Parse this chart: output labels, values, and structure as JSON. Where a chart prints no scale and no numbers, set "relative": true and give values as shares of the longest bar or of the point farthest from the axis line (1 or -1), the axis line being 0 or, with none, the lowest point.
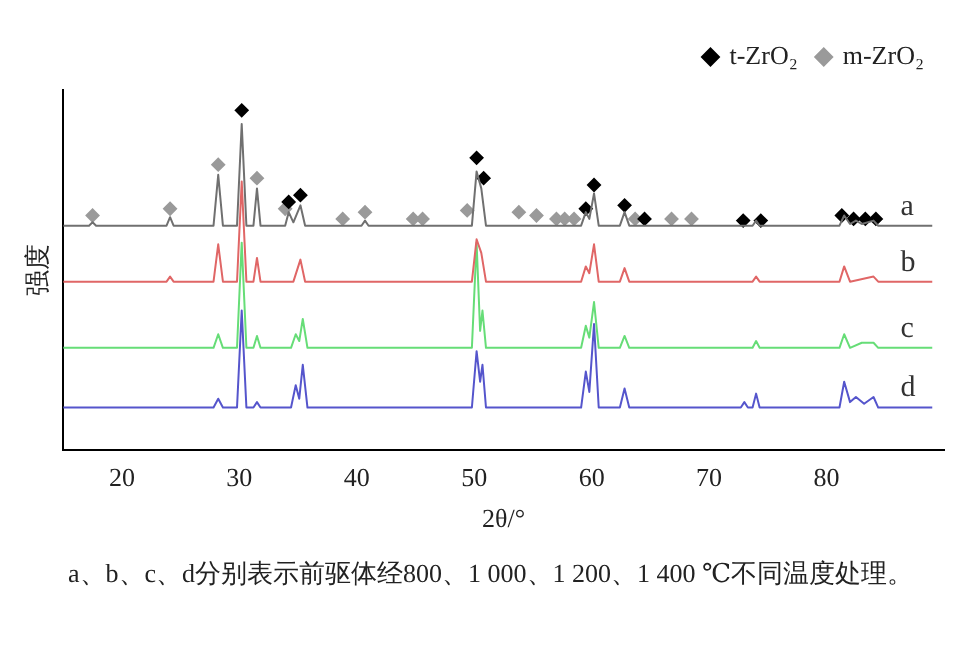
{
  "chart_data": {
    "type": "line",
    "relative": true,
    "xlabel": "2θ/°",
    "ylabel": "强度",
    "xlim": [
      15,
      90
    ],
    "xticks": [
      20,
      30,
      40,
      50,
      60,
      70,
      80
    ],
    "grid": false,
    "legend": "top right",
    "tick_labels": "x",
    "annotations": [
      "a、b、c、d分别表示前驱体经800、1 000、1 200、1 400 ℃不同温度处理。"
    ],
    "series": [
      {
        "name": "a",
        "marker": "none",
        "color": "#707070",
        "x": [
          15,
          17.2,
          17.5,
          17.8,
          23.8,
          24.1,
          24.4,
          27.8,
          28.2,
          28.6,
          29.8,
          30.2,
          30.6,
          31.2,
          31.5,
          31.8,
          33.9,
          34.2,
          34.6,
          35.2,
          35.6,
          40.4,
          40.7,
          41,
          49.8,
          50.2,
          50.6,
          51.0,
          59.1,
          59.5,
          59.8,
          60.2,
          60.6,
          62.4,
          62.8,
          63.2,
          73.7,
          74,
          74.3,
          81.1,
          81.5,
          82.0,
          82.5,
          83.0,
          84,
          84.4,
          89
        ],
        "values": [
          0.66,
          0.66,
          0.67,
          0.66,
          0.66,
          0.685,
          0.66,
          0.66,
          0.81,
          0.66,
          0.66,
          0.96,
          0.66,
          0.66,
          0.77,
          0.66,
          0.66,
          0.7,
          0.67,
          0.72,
          0.66,
          0.66,
          0.675,
          0.66,
          0.66,
          0.82,
          0.77,
          0.66,
          0.66,
          0.7,
          0.68,
          0.755,
          0.66,
          0.66,
          0.7,
          0.66,
          0.66,
          0.675,
          0.66,
          0.66,
          0.69,
          0.665,
          0.675,
          0.665,
          0.675,
          0.66,
          0.66
        ]
      },
      {
        "name": "b",
        "marker": "none",
        "color": "#e06666",
        "x": [
          15,
          23.8,
          24.1,
          24.4,
          27.8,
          28.2,
          28.6,
          29.8,
          30.2,
          30.6,
          31.2,
          31.5,
          31.8,
          34.6,
          35.2,
          35.6,
          49.8,
          50.2,
          50.6,
          51.0,
          59.1,
          59.5,
          59.8,
          60.2,
          60.6,
          62.4,
          62.8,
          63.2,
          73.7,
          74,
          74.3,
          81.1,
          81.5,
          82.0,
          84,
          84.4,
          89
        ],
        "values": [
          0.495,
          0.495,
          0.51,
          0.495,
          0.495,
          0.605,
          0.495,
          0.495,
          0.79,
          0.495,
          0.495,
          0.565,
          0.495,
          0.495,
          0.56,
          0.495,
          0.495,
          0.62,
          0.58,
          0.495,
          0.495,
          0.54,
          0.52,
          0.605,
          0.495,
          0.495,
          0.535,
          0.495,
          0.495,
          0.51,
          0.495,
          0.495,
          0.54,
          0.495,
          0.51,
          0.495,
          0.495
        ]
      },
      {
        "name": "c",
        "marker": "none",
        "color": "#66dd77",
        "x": [
          15,
          27.8,
          28.2,
          28.6,
          29.8,
          30.2,
          30.6,
          31.2,
          31.5,
          31.8,
          34.4,
          34.8,
          35.1,
          35.4,
          35.8,
          49.8,
          50.2,
          50.5,
          50.7,
          51.0,
          59.1,
          59.5,
          59.8,
          60.2,
          60.6,
          62.4,
          62.8,
          63.2,
          73.7,
          74,
          74.3,
          81.1,
          81.5,
          82.0,
          83,
          84,
          84.4,
          89
        ],
        "values": [
          0.3,
          0.3,
          0.34,
          0.3,
          0.3,
          0.61,
          0.3,
          0.3,
          0.335,
          0.3,
          0.3,
          0.34,
          0.32,
          0.385,
          0.3,
          0.3,
          0.61,
          0.35,
          0.41,
          0.3,
          0.3,
          0.365,
          0.33,
          0.435,
          0.3,
          0.3,
          0.335,
          0.3,
          0.3,
          0.32,
          0.3,
          0.3,
          0.34,
          0.3,
          0.315,
          0.315,
          0.3,
          0.3
        ]
      },
      {
        "name": "d",
        "marker": "none",
        "color": "#5555cc",
        "x": [
          15,
          27.8,
          28.2,
          28.6,
          29.8,
          30.2,
          30.6,
          31.2,
          31.5,
          31.8,
          34.4,
          34.8,
          35.1,
          35.4,
          35.8,
          49.8,
          50.2,
          50.5,
          50.7,
          51.0,
          59.1,
          59.5,
          59.8,
          60.2,
          60.6,
          62.4,
          62.8,
          63.2,
          72.7,
          73,
          73.3,
          73.7,
          74,
          74.3,
          81.1,
          81.5,
          82.0,
          82.5,
          83.2,
          84,
          84.4,
          89
        ],
        "values": [
          0.124,
          0.124,
          0.15,
          0.124,
          0.124,
          0.41,
          0.124,
          0.124,
          0.14,
          0.124,
          0.124,
          0.19,
          0.15,
          0.25,
          0.124,
          0.124,
          0.29,
          0.2,
          0.25,
          0.124,
          0.124,
          0.23,
          0.17,
          0.37,
          0.124,
          0.124,
          0.18,
          0.124,
          0.124,
          0.14,
          0.124,
          0.124,
          0.165,
          0.124,
          0.124,
          0.2,
          0.14,
          0.155,
          0.135,
          0.155,
          0.124,
          0.124
        ]
      },
      {
        "name": "t-ZrO₂",
        "type": "scatter",
        "marker": "diamond",
        "color": "#000000",
        "x": [
          30.2,
          34.2,
          35.2,
          50.2,
          50.8,
          59.5,
          60.2,
          62.8,
          64.5,
          72.9,
          74.4,
          81.3,
          82.3,
          83.3,
          84.2
        ],
        "values": [
          1.0,
          0.73,
          0.75,
          0.86,
          0.8,
          0.71,
          0.78,
          0.72,
          0.68,
          0.675,
          0.675,
          0.69,
          0.68,
          0.68,
          0.68
        ]
      },
      {
        "name": "m-ZrO₂",
        "type": "scatter",
        "marker": "diamond",
        "color": "#9a9a9a",
        "x": [
          17.5,
          24.1,
          28.2,
          31.5,
          33.9,
          38.8,
          40.7,
          44.8,
          45.6,
          49.4,
          53.8,
          55.3,
          57.0,
          57.7,
          58.5,
          63.7,
          66.8,
          68.5
        ],
        "values": [
          0.69,
          0.71,
          0.84,
          0.8,
          0.71,
          0.68,
          0.7,
          0.68,
          0.68,
          0.705,
          0.7,
          0.69,
          0.68,
          0.68,
          0.68,
          0.68,
          0.68,
          0.68
        ]
      }
    ]
  }
}
